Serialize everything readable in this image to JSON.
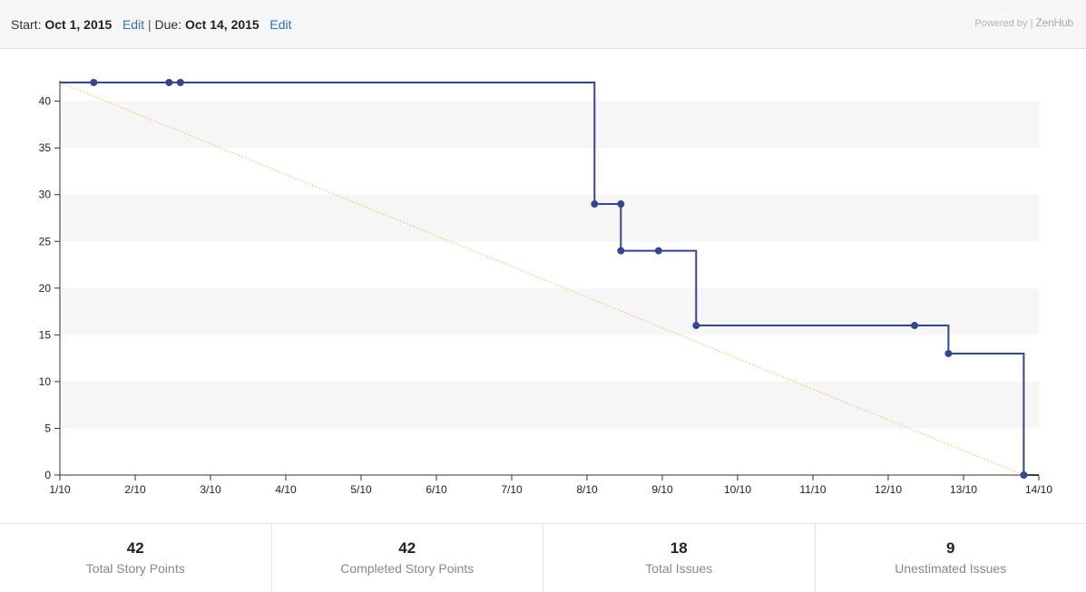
{
  "header": {
    "start_label": "Start:",
    "start_date": "Oct 1, 2015",
    "edit_label": "Edit",
    "separator": "|",
    "due_label": "Due:",
    "due_date": "Oct 14, 2015",
    "powered_by": "Powered by |",
    "brand": "ZenHub"
  },
  "chart_data": {
    "type": "line",
    "title": "",
    "xlabel": "",
    "ylabel": "",
    "x_ticks": [
      "1/10",
      "2/10",
      "3/10",
      "4/10",
      "5/10",
      "6/10",
      "7/10",
      "8/10",
      "9/10",
      "10/10",
      "11/10",
      "12/10",
      "13/10",
      "14/10"
    ],
    "y_ticks": [
      0,
      5,
      10,
      15,
      20,
      25,
      30,
      35,
      40
    ],
    "xlim": [
      1,
      14
    ],
    "ylim": [
      0,
      42
    ],
    "grid": "alternating horizontal bands",
    "legend": "none",
    "colors": {
      "remaining": "#34468f",
      "ideal": "#f5c26b",
      "band": "#f6f6f6",
      "axis": "#333333"
    },
    "series": [
      {
        "type": "step",
        "points": [
          [
            1,
            42
          ],
          [
            8.1,
            42
          ],
          [
            8.1,
            29
          ],
          [
            8.45,
            29
          ],
          [
            8.45,
            24
          ],
          [
            9.45,
            24
          ],
          [
            9.45,
            16
          ],
          [
            12.8,
            16
          ],
          [
            12.8,
            13
          ],
          [
            13.8,
            13
          ],
          [
            13.8,
            0
          ],
          [
            14,
            0
          ]
        ]
      },
      {
        "type": "markers",
        "points": [
          [
            1.45,
            42
          ],
          [
            2.45,
            42
          ],
          [
            2.6,
            42
          ],
          [
            8.1,
            29
          ],
          [
            8.45,
            29
          ],
          [
            8.45,
            24
          ],
          [
            8.95,
            24
          ],
          [
            9.45,
            16
          ],
          [
            12.35,
            16
          ],
          [
            12.8,
            13
          ],
          [
            13.8,
            0
          ]
        ]
      },
      {
        "type": "ideal",
        "style": "dotted",
        "points": [
          [
            1,
            42
          ],
          [
            13.8,
            0
          ]
        ]
      }
    ]
  },
  "stats": [
    {
      "value": "42",
      "label": "Total Story Points"
    },
    {
      "value": "42",
      "label": "Completed Story Points"
    },
    {
      "value": "18",
      "label": "Total Issues"
    },
    {
      "value": "9",
      "label": "Unestimated Issues"
    }
  ]
}
